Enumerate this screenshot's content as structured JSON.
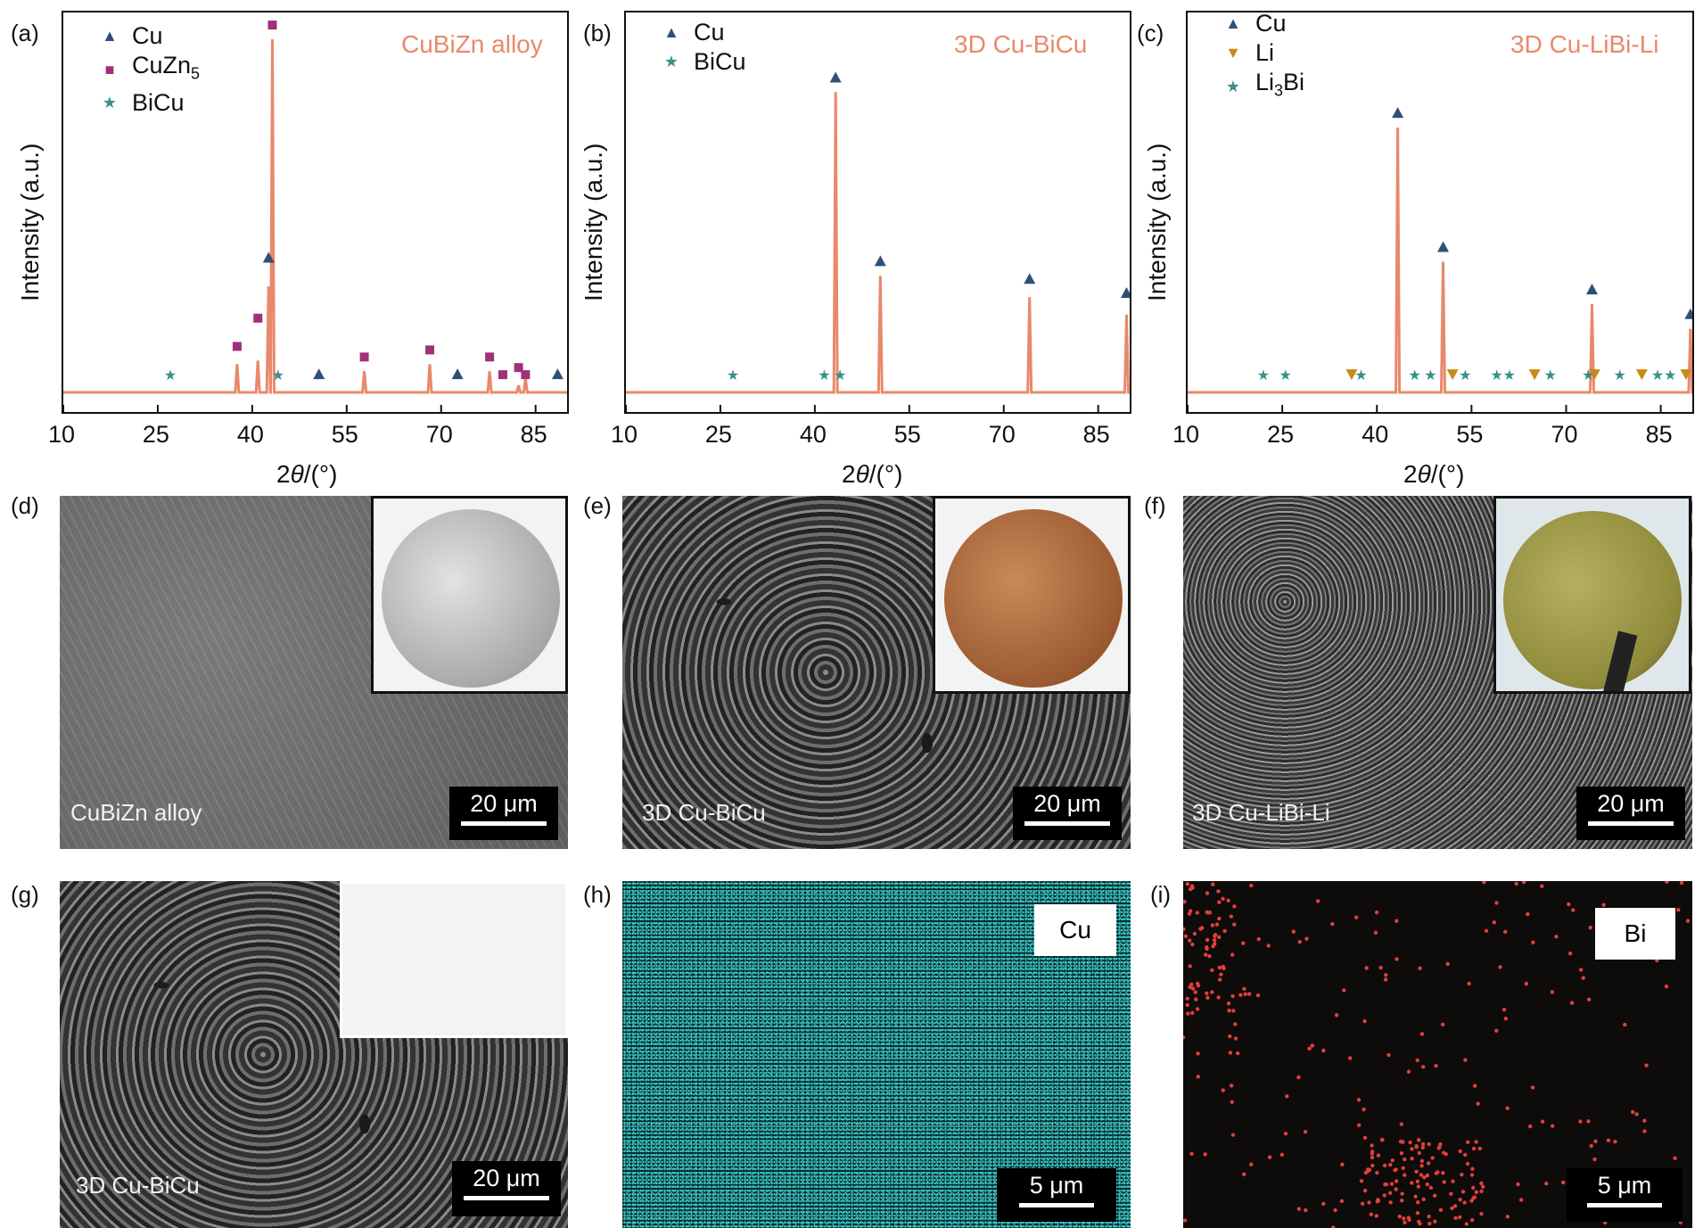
{
  "panels": {
    "a": {
      "label": "(a)",
      "tag": "CuBiZn alloy",
      "legend": [
        {
          "sym": "▲",
          "color": "#2f4f7a",
          "text": "Cu"
        },
        {
          "sym": "■",
          "color": "#a0307a",
          "text": "CuZn",
          "sub": "5"
        },
        {
          "sym": "★",
          "color": "#3a8f8a",
          "text": "BiCu"
        }
      ]
    },
    "b": {
      "label": "(b)",
      "tag": "3D Cu-BiCu",
      "legend": [
        {
          "sym": "▲",
          "color": "#2f4f7a",
          "text": "Cu"
        },
        {
          "sym": "★",
          "color": "#3a8f8a",
          "text": "BiCu"
        }
      ]
    },
    "c": {
      "label": "(c)",
      "tag": "3D Cu-LiBi-Li",
      "legend": [
        {
          "sym": "▲",
          "color": "#2f4f7a",
          "text": "Cu"
        },
        {
          "sym": "▼",
          "color": "#c98a1a",
          "text": "Li"
        },
        {
          "sym": "★",
          "color": "#3a8f8a",
          "text": "Li",
          "sub": "3",
          "suffix": "Bi"
        }
      ]
    },
    "d": {
      "label": "(d)",
      "caption": "CuBiZn alloy",
      "scale": "20 μm"
    },
    "e": {
      "label": "(e)",
      "caption": "3D Cu-BiCu",
      "scale": "20 μm"
    },
    "f": {
      "label": "(f)",
      "caption": "3D Cu-LiBi-Li",
      "scale": "20 μm"
    },
    "g": {
      "label": "(g)",
      "caption": "3D Cu-BiCu",
      "scale": "20 μm"
    },
    "h": {
      "label": "(h)",
      "element": "Cu",
      "scale": "5 μm"
    },
    "i": {
      "label": "(i)",
      "element": "Bi",
      "scale": "5 μm"
    }
  },
  "axis_text": {
    "ylabel": "Intensity (a.u.)",
    "xlabel_prefix": "2",
    "xlabel_theta": "θ",
    "xlabel_suffix": "/(°)"
  },
  "chart_data": [
    {
      "type": "line",
      "panel": "a",
      "title": "CuBiZn alloy",
      "xlabel": "2θ/(°)",
      "ylabel": "Intensity (a.u.)",
      "xlim": [
        10,
        90
      ],
      "ylim": [
        0,
        100
      ],
      "xticks": [
        10,
        25,
        40,
        55,
        70,
        85
      ],
      "line_color": "#e8896b",
      "peaks": [
        [
          27,
          0
        ],
        [
          37.6,
          8
        ],
        [
          40.9,
          9
        ],
        [
          42.6,
          30
        ],
        [
          43.2,
          100
        ],
        [
          57.8,
          6
        ],
        [
          68.2,
          8
        ],
        [
          77.7,
          6
        ],
        [
          82.3,
          2
        ],
        [
          83.4,
          4
        ]
      ],
      "markers": [
        {
          "series": "Cu",
          "x": [
            42.6,
            50.6,
            72.6,
            88.5
          ],
          "y": [
            36,
            3,
            3,
            3
          ]
        },
        {
          "series": "CuZn5",
          "x": [
            37.6,
            40.9,
            43.2,
            57.8,
            68.2,
            77.7,
            79.8,
            82.3,
            83.4
          ],
          "y": [
            11,
            19,
            102,
            8,
            10,
            8,
            3,
            5,
            3
          ]
        },
        {
          "series": "BiCu",
          "x": [
            27,
            44.1
          ],
          "y": [
            3,
            3
          ]
        }
      ]
    },
    {
      "type": "line",
      "panel": "b",
      "title": "3D Cu-BiCu",
      "xlabel": "2θ/(°)",
      "ylabel": "Intensity (a.u.)",
      "xlim": [
        10,
        90
      ],
      "ylim": [
        0,
        100
      ],
      "xticks": [
        10,
        25,
        40,
        55,
        70,
        85
      ],
      "line_color": "#e8896b",
      "peaks": [
        [
          43.3,
          85
        ],
        [
          50.4,
          33
        ],
        [
          74.1,
          27
        ],
        [
          89.5,
          22
        ]
      ],
      "markers": [
        {
          "series": "Cu",
          "x": [
            43.3,
            50.4,
            74.1,
            89.5
          ],
          "y": [
            87,
            35,
            30,
            26
          ]
        },
        {
          "series": "BiCu",
          "x": [
            27,
            41.5,
            44.0
          ],
          "y": [
            3,
            3,
            3
          ]
        }
      ]
    },
    {
      "type": "line",
      "panel": "c",
      "title": "3D Cu-LiBi-Li",
      "xlabel": "2θ/(°)",
      "ylabel": "Intensity (a.u.)",
      "xlim": [
        10,
        90
      ],
      "ylim": [
        0,
        100
      ],
      "xticks": [
        10,
        25,
        40,
        55,
        70,
        85
      ],
      "line_color": "#e8896b",
      "peaks": [
        [
          43.3,
          75
        ],
        [
          50.5,
          37
        ],
        [
          74.1,
          25
        ],
        [
          89.7,
          18
        ]
      ],
      "markers": [
        {
          "series": "Cu",
          "x": [
            43.3,
            50.5,
            74.1,
            89.7
          ],
          "y": [
            77,
            39,
            27,
            20
          ]
        },
        {
          "series": "Li",
          "x": [
            36.0,
            52.0,
            65.0,
            74.5,
            82.0,
            89.0
          ],
          "y": [
            3,
            3,
            3,
            3,
            3,
            3
          ]
        },
        {
          "series": "Li3Bi",
          "x": [
            22.0,
            25.5,
            37.5,
            46.0,
            48.5,
            54.0,
            59.0,
            61.0,
            67.5,
            73.5,
            78.5,
            84.5,
            86.5
          ],
          "y": [
            3,
            3,
            3,
            3,
            3,
            3,
            3,
            3,
            3,
            3,
            3,
            3,
            3
          ]
        }
      ]
    }
  ]
}
